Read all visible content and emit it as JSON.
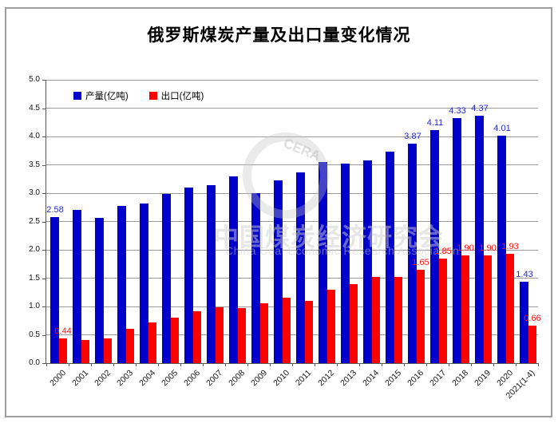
{
  "chart_data": {
    "type": "bar",
    "title": "俄罗斯煤炭产量及出口量变化情况",
    "categories": [
      "2000",
      "2001",
      "2002",
      "2003",
      "2004",
      "2005",
      "2006",
      "2007",
      "2008",
      "2009",
      "2010",
      "2011",
      "2012",
      "2013",
      "2014",
      "2015",
      "2016",
      "2017",
      "2018",
      "2019",
      "2020",
      "2021(1-4)"
    ],
    "series": [
      {
        "name": "产量(亿吨)",
        "color": "#0000cc",
        "values": [
          2.58,
          2.7,
          2.56,
          2.77,
          2.82,
          2.98,
          3.1,
          3.14,
          3.29,
          3.0,
          3.23,
          3.36,
          3.55,
          3.52,
          3.58,
          3.73,
          3.87,
          4.11,
          4.33,
          4.37,
          4.01,
          1.43
        ],
        "data_labels": {
          "0": "2.58",
          "16": "3.87",
          "17": "4.11",
          "18": "4.33",
          "19": "4.37",
          "20": "4.01",
          "21": "1.43"
        }
      },
      {
        "name": "出口(亿吨)",
        "color": "#fe0000",
        "values": [
          0.44,
          0.41,
          0.44,
          0.61,
          0.72,
          0.8,
          0.92,
          0.98,
          0.97,
          1.05,
          1.16,
          1.1,
          1.3,
          1.4,
          1.52,
          1.52,
          1.65,
          1.85,
          1.9,
          1.9,
          1.93,
          0.66
        ],
        "data_labels": {
          "0": "0.44",
          "16": "1.65",
          "17": "1.85",
          "18": "1.90",
          "19": "1.90",
          "20": "1.93",
          "21": "0.66"
        }
      }
    ],
    "yaxis": {
      "min": 0.0,
      "max": 5.0,
      "step": 0.5,
      "tick_labels": [
        "0.0",
        "0.5",
        "1.0",
        "1.5",
        "2.0",
        "2.5",
        "3.0",
        "3.5",
        "4.0",
        "4.5",
        "5.0"
      ]
    },
    "grid": true,
    "legend_position": "top-left"
  },
  "watermark": {
    "logo_text": "CERA",
    "line1": "中国煤炭经济研究会",
    "line2": "China Coal Economic Research Association"
  }
}
